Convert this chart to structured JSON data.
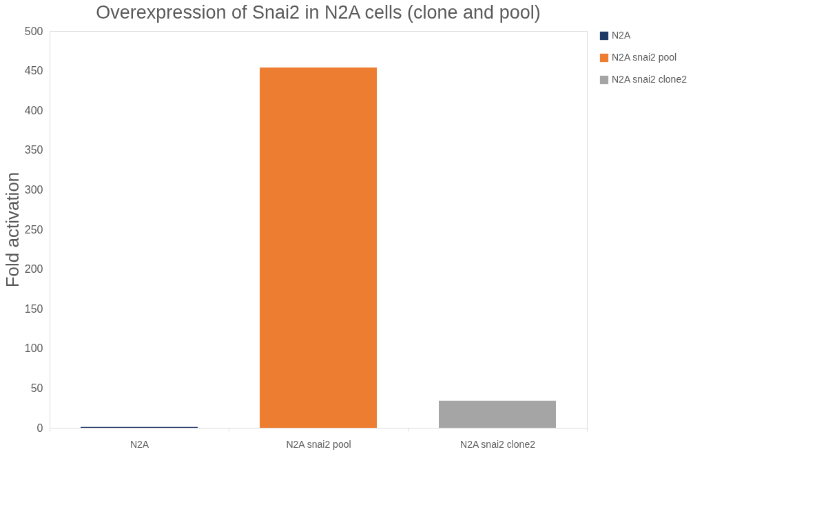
{
  "chart_data": {
    "type": "bar",
    "title": "Overexpression of Snai2 in N2A cells (clone  and pool)",
    "ylabel": "Fold activation",
    "categories": [
      "N2A",
      "N2A snai2 pool",
      "N2A snai2 clone2"
    ],
    "series": [
      {
        "name": "N2A",
        "color": "#203864",
        "values": [
          1,
          null,
          null
        ]
      },
      {
        "name": "N2A snai2 pool",
        "color": "#ed7d31",
        "values": [
          null,
          454,
          null
        ]
      },
      {
        "name": "N2A snai2 clone2",
        "color": "#a5a5a5",
        "values": [
          null,
          null,
          34
        ]
      }
    ],
    "ylim": [
      0,
      500
    ],
    "yticks": [
      0,
      50,
      100,
      150,
      200,
      250,
      300,
      350,
      400,
      450,
      500
    ],
    "grid": false,
    "legend": "right"
  }
}
